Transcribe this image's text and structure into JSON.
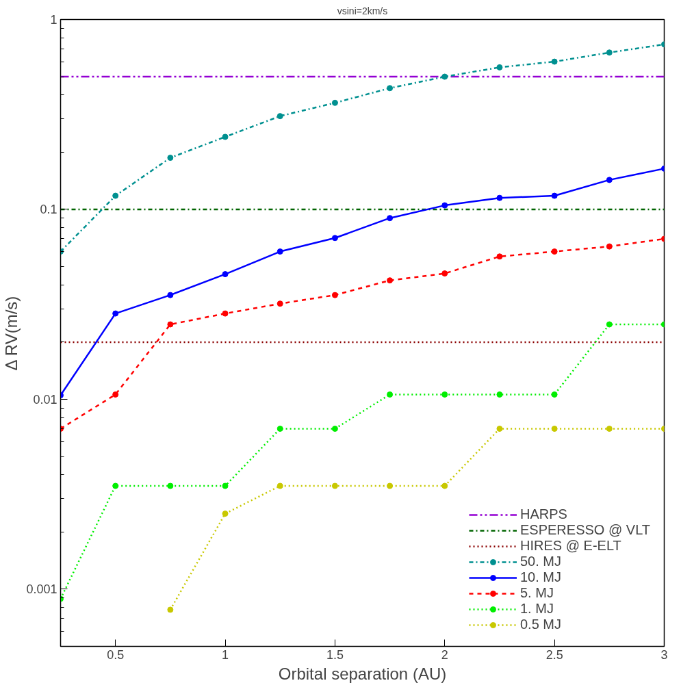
{
  "chart_data": {
    "type": "line",
    "title": "vsini=2km/s",
    "xlabel": "Orbital separation (AU)",
    "ylabel": "Δ RV(m/s)",
    "x": [
      0.25,
      0.5,
      0.75,
      1,
      1.25,
      1.5,
      1.75,
      2,
      2.25,
      2.5,
      2.75,
      3
    ],
    "xlim": [
      0.25,
      3
    ],
    "xticks": [
      0.5,
      1,
      1.5,
      2,
      2.5,
      3
    ],
    "ylim": [
      0.0005,
      1
    ],
    "yticks": [
      0.001,
      0.01,
      0.1,
      1
    ],
    "log": "y",
    "grid": false,
    "legend": "bottom right",
    "marker": "circle",
    "ref_lines": [
      {
        "axis": "y",
        "value": 0.5,
        "label": "HARPS",
        "color": "#9400d3",
        "line_style": "dashdotdot"
      },
      {
        "axis": "y",
        "value": 0.1,
        "label": "ESPERESSO @ VLT",
        "color": "#006400",
        "line_style": "dashdot"
      },
      {
        "axis": "y",
        "value": 0.02,
        "label": "HIRES @ E-ELT",
        "color": "#8b0000",
        "line_style": "dotted"
      }
    ],
    "series": [
      {
        "name": "50. MJ",
        "color": "#009090",
        "line_style": "dashdot",
        "values": [
          0.06,
          0.118,
          0.187,
          0.241,
          0.31,
          0.364,
          0.435,
          0.5,
          0.56,
          0.6,
          0.67,
          0.74
        ]
      },
      {
        "name": "10. MJ",
        "color": "#0000ff",
        "line_style": "solid",
        "values": [
          0.0105,
          0.0283,
          0.0354,
          0.0456,
          0.06,
          0.0707,
          0.09,
          0.105,
          0.115,
          0.118,
          0.143,
          0.164
        ]
      },
      {
        "name": "5. MJ",
        "color": "#ff0000",
        "line_style": "dashed",
        "values": [
          0.007,
          0.0106,
          0.0248,
          0.0283,
          0.0319,
          0.0354,
          0.0423,
          0.046,
          0.0565,
          0.06,
          0.0638,
          0.07
        ]
      },
      {
        "name": "1. MJ",
        "color": "#00ee00",
        "line_style": "dotted",
        "values": [
          0.00089,
          0.0035,
          0.0035,
          0.0035,
          0.007,
          0.007,
          0.0106,
          0.0106,
          0.0106,
          0.0106,
          0.0248,
          0.0248
        ]
      },
      {
        "name": "0.5 MJ",
        "color": "#c8c800",
        "line_style": "dotted",
        "values": [
          null,
          null,
          0.00078,
          0.0025,
          0.0035,
          0.0035,
          0.0035,
          0.0035,
          0.007,
          0.007,
          0.007,
          0.007
        ]
      }
    ]
  }
}
